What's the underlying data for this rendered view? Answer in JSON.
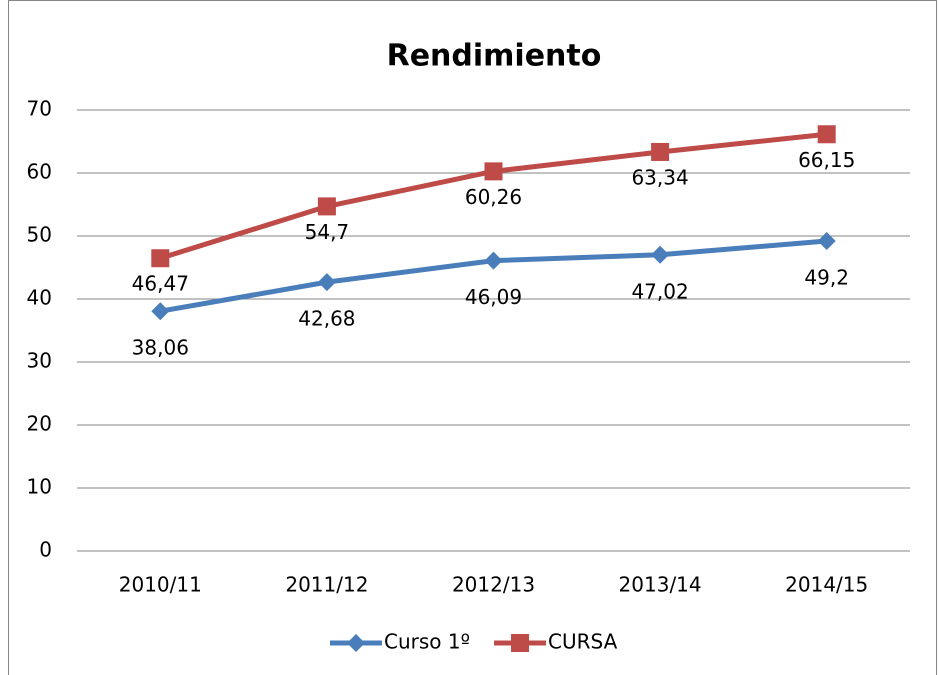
{
  "chart_data": {
    "type": "line",
    "title": "Rendimiento",
    "categories": [
      "2010/11",
      "2011/12",
      "2012/13",
      "2013/14",
      "2014/15"
    ],
    "series": [
      {
        "name": "Curso 1º",
        "color": "#4a7ebb",
        "marker": "diamond",
        "values": [
          38.06,
          42.68,
          46.09,
          47.02,
          49.2
        ],
        "value_labels": [
          "38,06",
          "42,68",
          "46,09",
          "47,02",
          "49,2"
        ]
      },
      {
        "name": "CURSA",
        "color": "#be4b48",
        "marker": "square",
        "values": [
          46.47,
          54.7,
          60.26,
          63.34,
          66.15
        ],
        "value_labels": [
          "46,47",
          "54,7",
          "60,26",
          "63,34",
          "66,15"
        ]
      }
    ],
    "ylim": [
      0,
      70
    ],
    "yticks": [
      0,
      10,
      20,
      30,
      40,
      50,
      60,
      70
    ],
    "grid": true,
    "legend": "bottom"
  }
}
